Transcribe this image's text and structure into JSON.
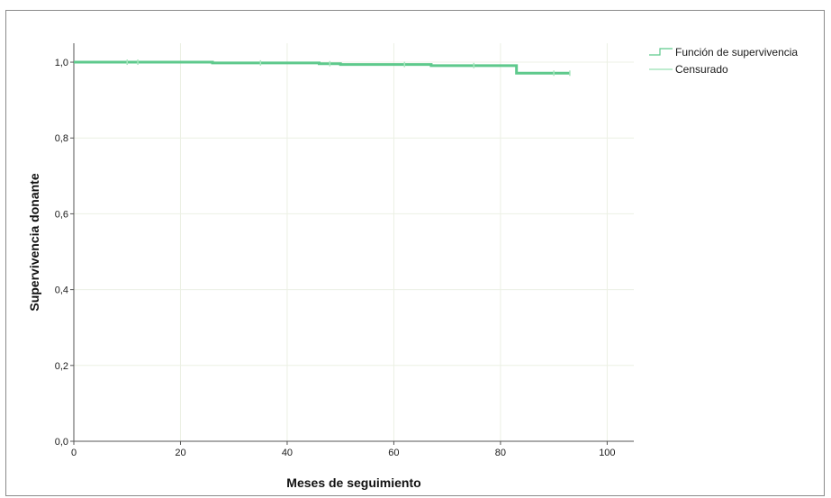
{
  "chart_data": {
    "type": "line",
    "chart_kind": "kaplan-meier survival curve",
    "xlabel": "Meses de seguimiento",
    "ylabel": "Supervivencia donante",
    "xlim": [
      0,
      105
    ],
    "ylim": [
      0,
      1.05
    ],
    "x_ticks": [
      0,
      20,
      40,
      60,
      80,
      100
    ],
    "x_tick_labels": [
      "0",
      "20",
      "40",
      "60",
      "80",
      "100"
    ],
    "y_ticks": [
      0,
      0.2,
      0.4,
      0.6,
      0.8,
      1.0
    ],
    "y_tick_labels": [
      "0,0",
      "0,2",
      "0,4",
      "0,6",
      "0,8",
      "1,0"
    ],
    "grid": true,
    "legend_placement": "top-right (outside plot)",
    "series": [
      {
        "name": "Función de supervivencia",
        "style": "step",
        "color": "#5ec98c",
        "points": [
          {
            "x": 0,
            "y": 1.0
          },
          {
            "x": 26,
            "y": 0.998
          },
          {
            "x": 46,
            "y": 0.996
          },
          {
            "x": 50,
            "y": 0.994
          },
          {
            "x": 67,
            "y": 0.991
          },
          {
            "x": 83,
            "y": 0.991
          },
          {
            "x": 83,
            "y": 0.971
          },
          {
            "x": 93,
            "y": 0.971
          }
        ]
      },
      {
        "name": "Censurado",
        "style": "censor-marks",
        "color": "#a8e6bf",
        "points": [
          {
            "x": 10,
            "y": 1.0
          },
          {
            "x": 12,
            "y": 1.0
          },
          {
            "x": 35,
            "y": 0.998
          },
          {
            "x": 48,
            "y": 0.996
          },
          {
            "x": 62,
            "y": 0.994
          },
          {
            "x": 75,
            "y": 0.991
          },
          {
            "x": 90,
            "y": 0.971
          },
          {
            "x": 93,
            "y": 0.971
          }
        ]
      }
    ],
    "colors": {
      "survival_line": "#5ec98c",
      "censored": "#a8e6bf",
      "grid": "#ecf0e4",
      "axis": "#555555"
    }
  }
}
